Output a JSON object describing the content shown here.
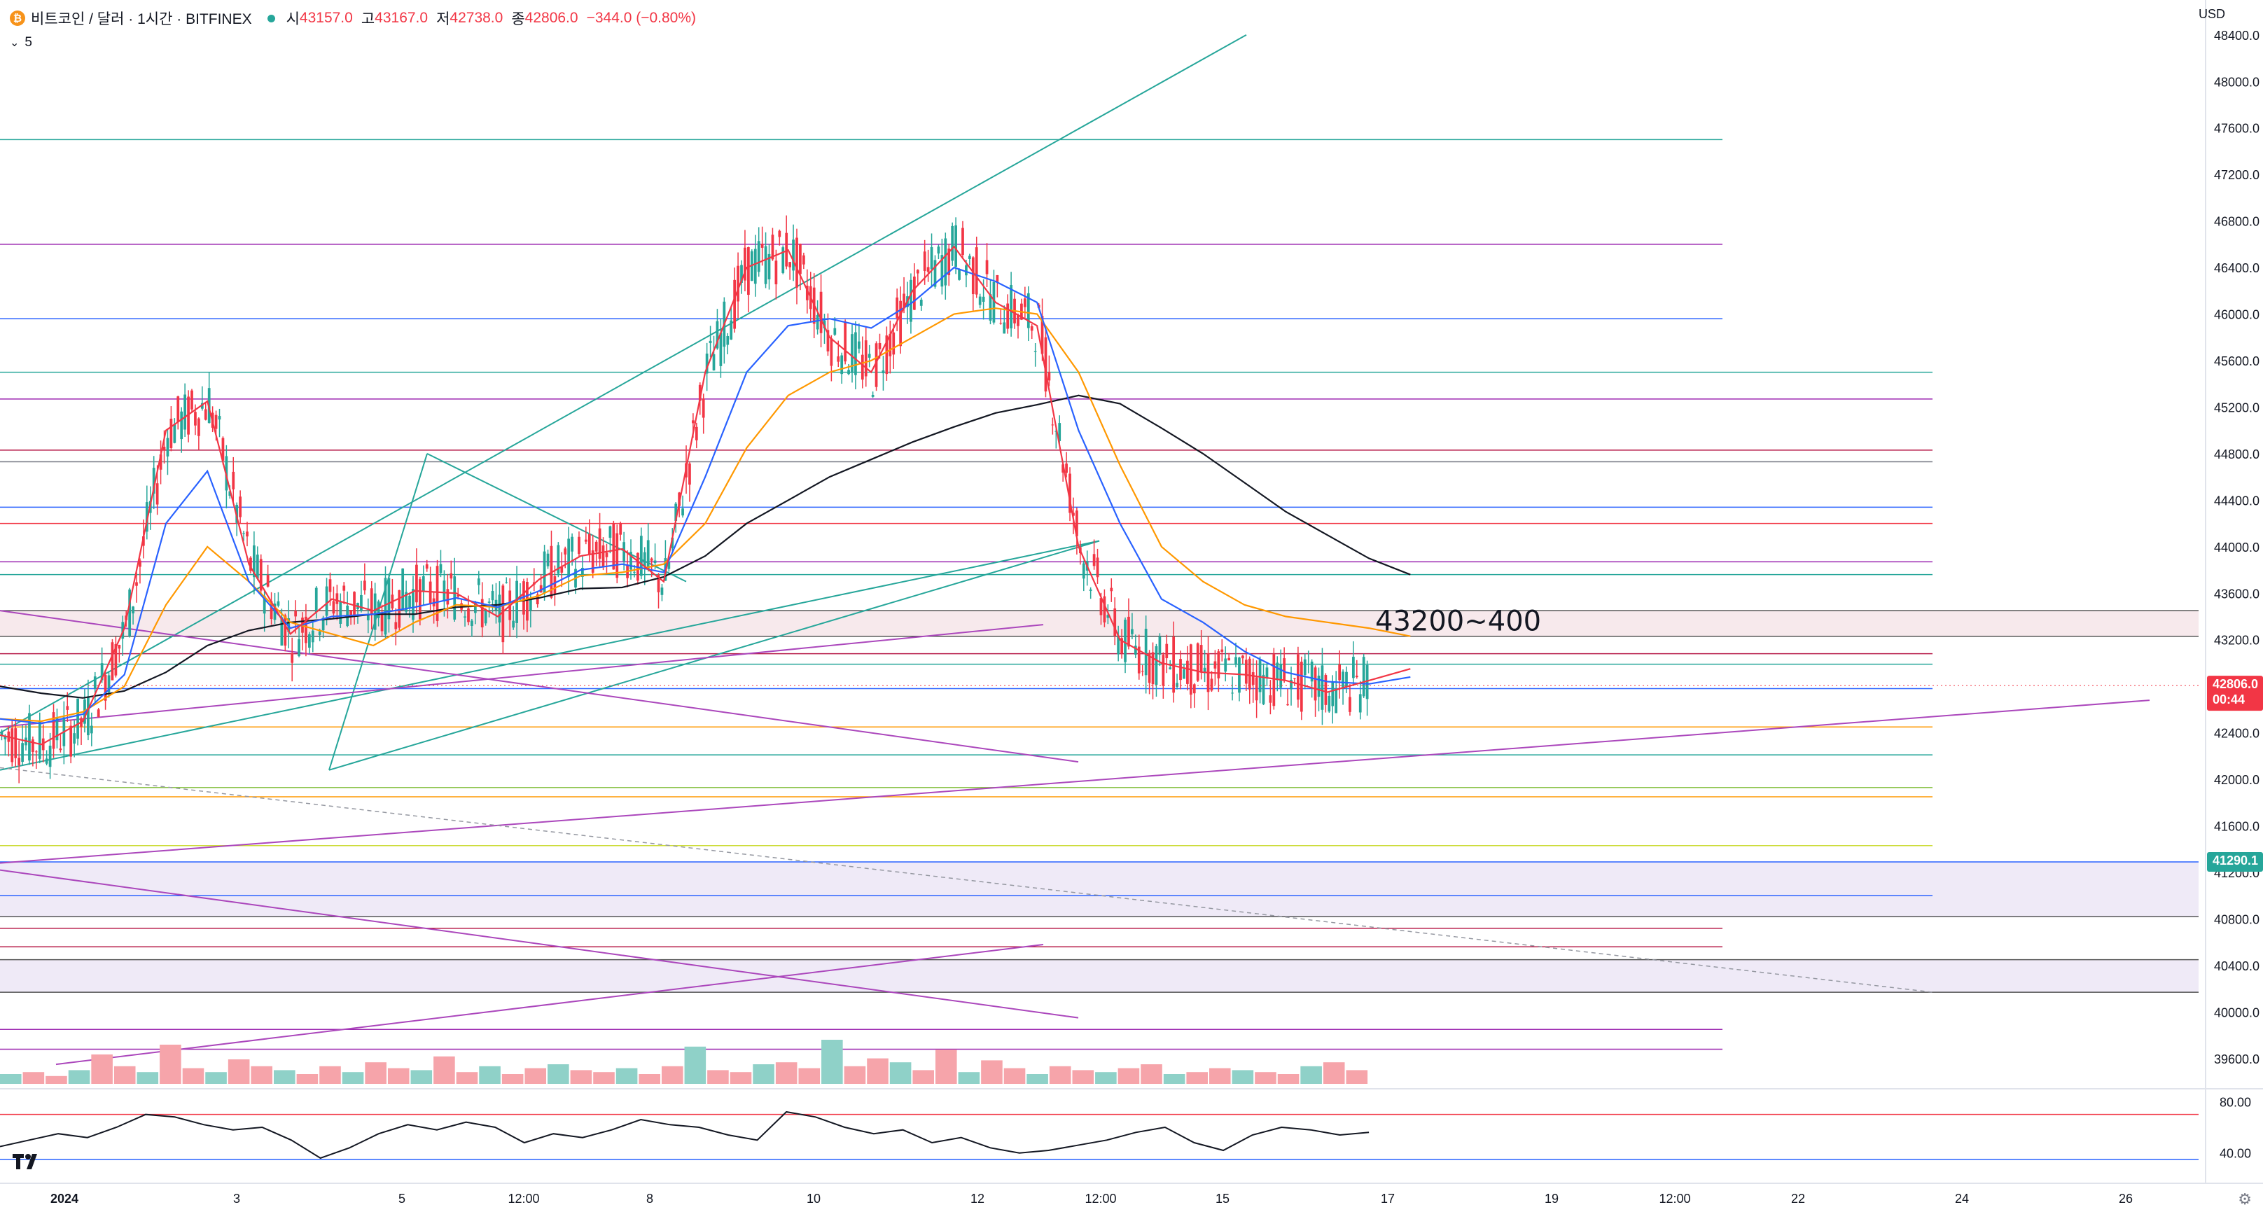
{
  "header": {
    "coin_icon": "bitcoin-icon",
    "coin_glyph": "₿",
    "symbol": "비트코인 / 달러 · 1시간 · BITFINEX",
    "status_color": "#26a69a",
    "open_label": "시",
    "open": "43157.0",
    "high_label": "고",
    "high": "43167.0",
    "low_label": "저",
    "low": "42738.0",
    "close_label": "종",
    "close": "42806.0",
    "change": "−344.0 (−0.80%)",
    "indicator_count": "5"
  },
  "currency": "USD",
  "colors": {
    "up": "#26a69a",
    "down": "#f23645",
    "ema_red": "#f23645",
    "ema_blue": "#2962ff",
    "ema_orange": "#ff9800",
    "ema_black": "#131722",
    "purple": "#ab47bc",
    "teal": "#26a69a"
  },
  "chart_data": {
    "type": "line",
    "title": "",
    "xlabel": "",
    "ylabel": "",
    "price_axis": {
      "ticks": [
        "48400.0",
        "48000.0",
        "47600.0",
        "47200.0",
        "46800.0",
        "46400.0",
        "46000.0",
        "45600.0",
        "45200.0",
        "44800.0",
        "44400.0",
        "44000.0",
        "43600.0",
        "43200.0",
        "42800.0",
        "42400.0",
        "42000.0",
        "41600.0",
        "41200.0",
        "40800.0",
        "40400.0",
        "40000.0",
        "39600.0"
      ],
      "ylim": [
        39400,
        48700
      ]
    },
    "oscillator_axis": {
      "ticks": [
        "80.00",
        "40.00"
      ]
    },
    "time_axis": {
      "ticks": [
        "2024",
        "3",
        "5",
        "12:00",
        "8",
        "10",
        "12",
        "12:00",
        "15",
        "17",
        "19",
        "12:00",
        "22",
        "24",
        "26"
      ],
      "range_hours": [
        0,
        636
      ]
    },
    "price_label": {
      "value": "42806.0",
      "countdown": "00:44",
      "color": "#f23645"
    },
    "level_label": {
      "value": "41290.1",
      "color": "#26a69a"
    },
    "annotation": {
      "text": "43200~400",
      "price": 43230
    },
    "series": [
      {
        "name": "",
        "color": "#131722",
        "x": [
          0,
          12,
          24,
          36,
          48,
          60,
          72,
          84,
          96,
          108,
          120,
          132,
          144,
          156,
          168,
          180,
          192,
          204,
          216,
          228,
          240,
          252,
          264,
          276,
          288,
          300,
          312,
          324,
          336,
          348,
          360,
          372,
          384,
          396,
          408
        ],
        "y": [
          42800,
          42740,
          42700,
          42760,
          42920,
          43150,
          43280,
          43350,
          43380,
          43420,
          43420,
          43480,
          43500,
          43560,
          43640,
          43650,
          43740,
          43920,
          44200,
          44400,
          44600,
          44750,
          44900,
          45030,
          45150,
          45220,
          45300,
          45230,
          45020,
          44800,
          44550,
          44300,
          44100,
          43900,
          43760
        ]
      },
      {
        "name": "",
        "color": "#ff9800",
        "x": [
          0,
          12,
          24,
          36,
          48,
          60,
          72,
          84,
          96,
          108,
          120,
          132,
          144,
          156,
          168,
          180,
          192,
          204,
          216,
          228,
          240,
          252,
          264,
          276,
          288,
          300,
          312,
          324,
          336,
          348,
          360,
          372,
          384,
          396,
          408
        ],
        "y": [
          42520,
          42500,
          42580,
          42800,
          43500,
          44000,
          43700,
          43350,
          43250,
          43150,
          43350,
          43500,
          43480,
          43580,
          43750,
          43780,
          43850,
          44200,
          44850,
          45300,
          45500,
          45600,
          45800,
          46000,
          46050,
          46000,
          45500,
          44700,
          44000,
          43700,
          43500,
          43400,
          43350,
          43300,
          43230
        ]
      },
      {
        "name": "",
        "color": "#2962ff",
        "x": [
          0,
          12,
          24,
          36,
          48,
          60,
          72,
          84,
          96,
          108,
          120,
          132,
          144,
          156,
          168,
          180,
          192,
          204,
          216,
          228,
          240,
          252,
          264,
          276,
          288,
          300,
          312,
          324,
          336,
          348,
          360,
          372,
          384,
          396,
          408
        ],
        "y": [
          42520,
          42480,
          42560,
          42900,
          44200,
          44650,
          43700,
          43300,
          43400,
          43420,
          43480,
          43560,
          43480,
          43620,
          43800,
          43850,
          43780,
          44600,
          45500,
          45900,
          45960,
          45880,
          46100,
          46400,
          46280,
          46100,
          45000,
          44200,
          43550,
          43350,
          43100,
          42920,
          42840,
          42820,
          42880
        ]
      },
      {
        "name": "",
        "color": "#f23645",
        "x": [
          0,
          12,
          24,
          36,
          48,
          60,
          72,
          84,
          96,
          108,
          120,
          132,
          144,
          156,
          168,
          180,
          192,
          204,
          216,
          228,
          240,
          252,
          264,
          276,
          288,
          300,
          312,
          324,
          336,
          348,
          360,
          372,
          384,
          396,
          408
        ],
        "y": [
          42380,
          42300,
          42500,
          43300,
          45000,
          45250,
          43850,
          43250,
          43550,
          43450,
          43620,
          43600,
          43400,
          43720,
          43920,
          43980,
          43700,
          45500,
          46400,
          46550,
          45800,
          45500,
          46200,
          46580,
          46100,
          45900,
          44000,
          43200,
          43000,
          42920,
          42900,
          42850,
          42750,
          42850,
          42950
        ]
      }
    ],
    "volume": {
      "ylim": [
        0,
        100
      ],
      "values": [
        10,
        12,
        8,
        14,
        30,
        18,
        12,
        40,
        16,
        12,
        25,
        18,
        14,
        10,
        18,
        12,
        22,
        16,
        14,
        28,
        12,
        18,
        10,
        16,
        20,
        14,
        12,
        16,
        10,
        18,
        38,
        14,
        12,
        20,
        22,
        16,
        45,
        18,
        26,
        22,
        14,
        35,
        12,
        24,
        16,
        10,
        18,
        14,
        12,
        16,
        20,
        10,
        12,
        16,
        14,
        12,
        10,
        18,
        22,
        14
      ]
    },
    "oscillator": {
      "ylim": [
        30,
        90
      ],
      "values": [
        45,
        50,
        55,
        52,
        60,
        70,
        68,
        62,
        58,
        60,
        50,
        36,
        44,
        55,
        62,
        58,
        64,
        60,
        48,
        55,
        52,
        58,
        66,
        62,
        60,
        54,
        50,
        72,
        68,
        60,
        55,
        58,
        48,
        52,
        44,
        40,
        42,
        46,
        50,
        56,
        60,
        48,
        42,
        54,
        60,
        58,
        54,
        56
      ]
    }
  }
}
